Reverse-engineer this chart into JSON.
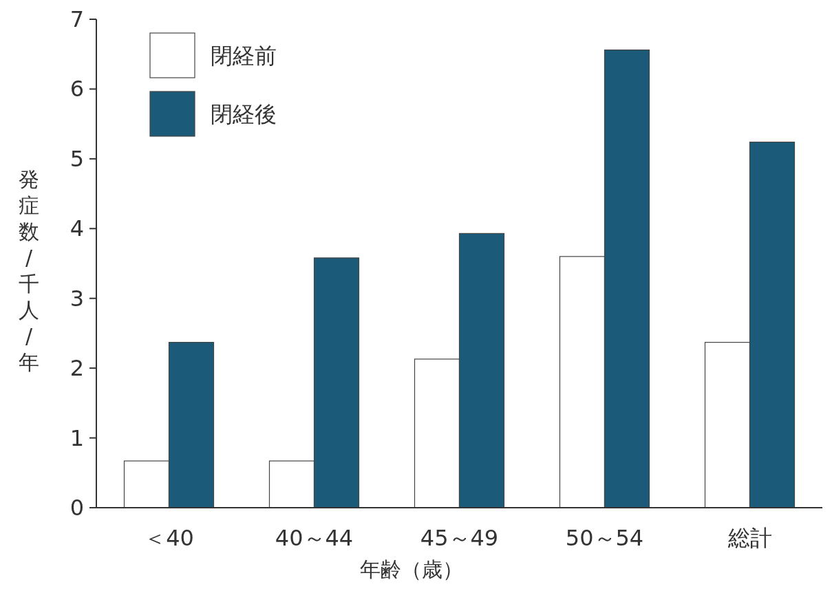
{
  "chart_data": {
    "type": "bar",
    "categories": [
      "＜40",
      "40～44",
      "45～49",
      "50～54",
      "総計"
    ],
    "xlabel": "年齢（歳）",
    "ylabel": "発症数/千人/年",
    "ylim": [
      0,
      7
    ],
    "yticks": [
      0,
      1,
      2,
      3,
      4,
      5,
      6,
      7
    ],
    "legend": "top left",
    "grid": false,
    "series": [
      {
        "name": "閉経前",
        "color": "#ffffff",
        "values": [
          0.67,
          0.67,
          2.13,
          3.6,
          2.37
        ]
      },
      {
        "name": "閉経後",
        "color": "#1b5a78",
        "values": [
          2.37,
          3.58,
          3.93,
          6.56,
          5.24
        ]
      }
    ]
  }
}
